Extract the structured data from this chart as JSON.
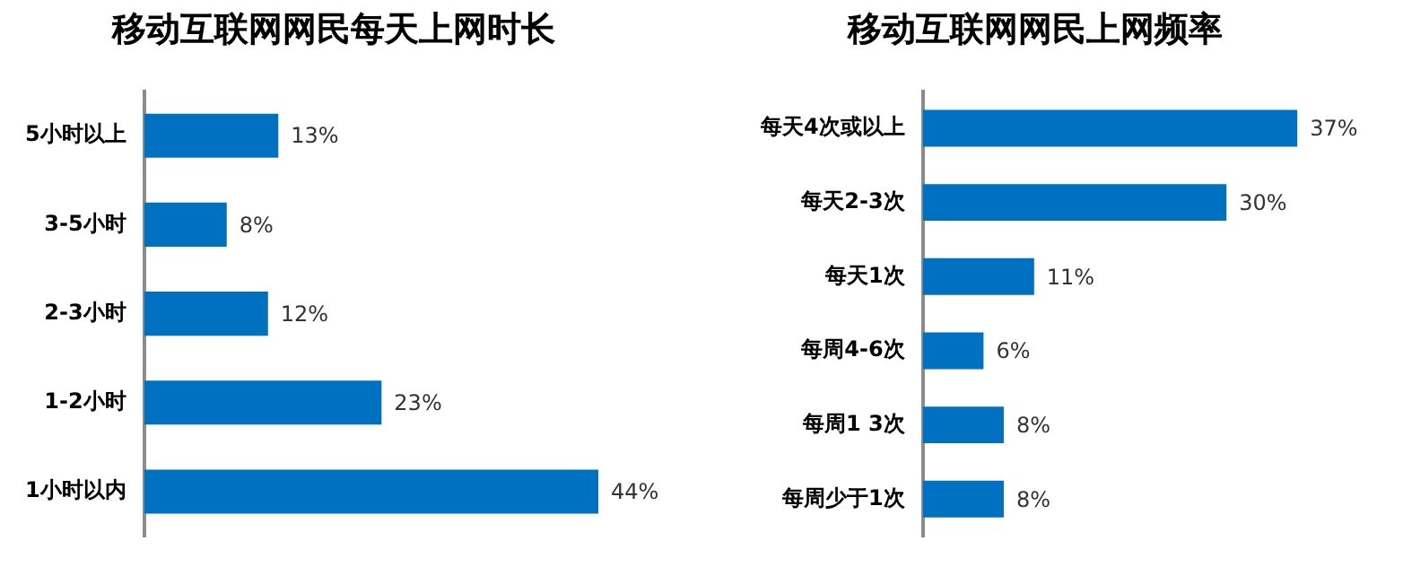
{
  "chart_data": [
    {
      "type": "bar",
      "orientation": "horizontal",
      "title": "移动互联网网民每天上网时长",
      "categories": [
        "5小时以上",
        "3-5小时",
        "2-3小时",
        "1-2小时",
        "1小时以内"
      ],
      "values": [
        13,
        8,
        12,
        23,
        44
      ],
      "value_labels": [
        "13%",
        "8%",
        "12%",
        "23%",
        "44%"
      ],
      "color": "#0070c0"
    },
    {
      "type": "bar",
      "orientation": "horizontal",
      "title": "移动互联网网民上网频率",
      "categories": [
        "每天4次或以上",
        "每天2-3次",
        "每天1次",
        "每周4-6次",
        "每周1 3次",
        "每周少于1次"
      ],
      "values": [
        37,
        30,
        11,
        6,
        8,
        8
      ],
      "value_labels": [
        "37%",
        "30%",
        "11%",
        "6%",
        "8%",
        "8%"
      ],
      "color": "#0070c0"
    }
  ]
}
